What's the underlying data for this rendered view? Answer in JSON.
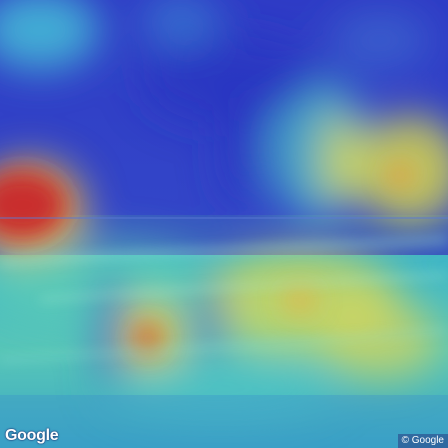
{
  "scene": {
    "description_type": "beach photo with attention heatmap overlay",
    "colors": {
      "sky": "#2d3fc4",
      "sea": "#3a5fc0",
      "hot": "#c8262a",
      "warm": "#e6e24a",
      "cool": "#4fd6d9"
    }
  },
  "watermark": {
    "logo_text": "Google",
    "attribution": "© Google"
  }
}
